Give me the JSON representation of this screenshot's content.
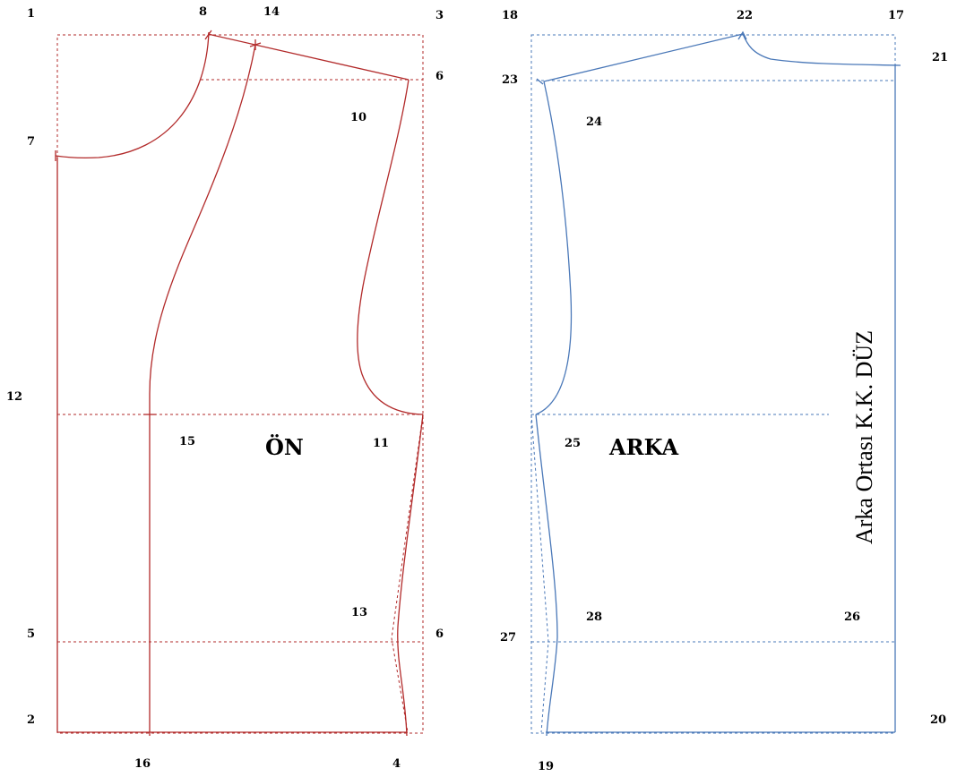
{
  "colors": {
    "front": "#b22a2a",
    "back": "#4a78b8",
    "text": "#000000"
  },
  "front": {
    "title": "ÖN",
    "points": [
      "1",
      "8",
      "14",
      "3",
      "6",
      "7",
      "10",
      "12",
      "15",
      "11",
      "13",
      "5",
      "6",
      "2",
      "16",
      "4"
    ]
  },
  "back": {
    "title": "ARKA",
    "points": [
      "18",
      "22",
      "17",
      "21",
      "23",
      "24",
      "25",
      "28",
      "26",
      "27",
      "20",
      "19"
    ],
    "center_back_label": "Arka Ortası K.K. DÜZ"
  }
}
